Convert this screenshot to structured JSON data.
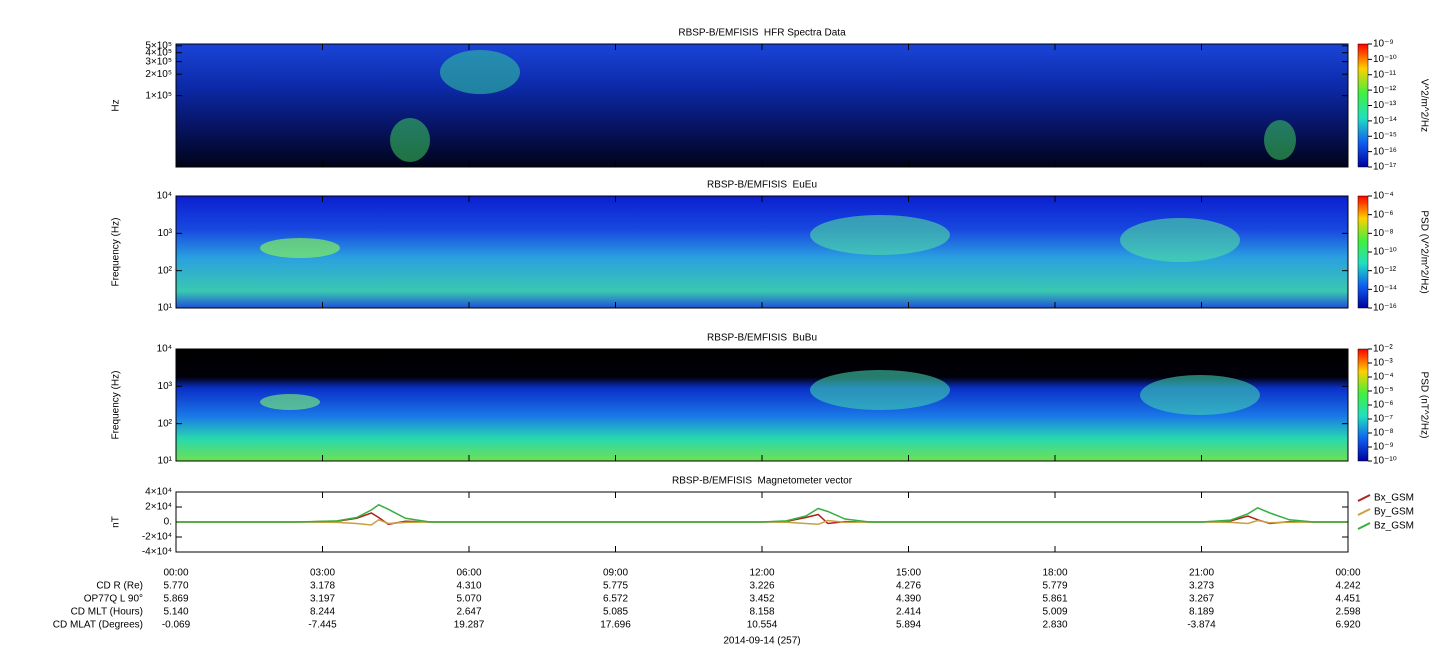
{
  "chart_data": [
    {
      "type": "spectrogram",
      "title": "RBSP-B/EMFISIS  HFR Spectra Data",
      "y_label": "Hz",
      "log_y": true,
      "ylim": [
        10000,
        530000
      ],
      "yticks": [
        {
          "value": 500000,
          "label": "5×10⁵"
        },
        {
          "value": 400000,
          "label": "4×10⁵"
        },
        {
          "value": 300000,
          "label": "3×10⁵"
        },
        {
          "value": 200000,
          "label": "2×10⁵"
        },
        {
          "value": 100000,
          "label": "1×10⁵"
        }
      ],
      "colorbar": {
        "label": "V^2/m^2/Hz",
        "zlim": [
          1e-17,
          1e-09
        ],
        "ticks": [
          {
            "value": 1e-09,
            "label": "10⁻⁹"
          },
          {
            "value": 1e-10,
            "label": "10⁻¹⁰"
          },
          {
            "value": 1e-11,
            "label": "10⁻¹¹"
          },
          {
            "value": 1e-12,
            "label": "10⁻¹²"
          },
          {
            "value": 1e-13,
            "label": "10⁻¹³"
          },
          {
            "value": 1e-14,
            "label": "10⁻¹⁴"
          },
          {
            "value": 1e-15,
            "label": "10⁻¹⁵"
          },
          {
            "value": 1e-16,
            "label": "10⁻¹⁶"
          },
          {
            "value": 1e-17,
            "label": "10⁻¹⁷"
          }
        ]
      }
    },
    {
      "type": "spectrogram",
      "title": "RBSP-B/EMFISIS  EuEu",
      "y_label": "Frequency (Hz)",
      "log_y": true,
      "ylim": [
        10,
        10000
      ],
      "yticks": [
        {
          "value": 10000,
          "label": "10⁴"
        },
        {
          "value": 1000,
          "label": "10³"
        },
        {
          "value": 100,
          "label": "10²"
        },
        {
          "value": 10,
          "label": "10¹"
        }
      ],
      "colorbar": {
        "label": "PSD (V^2/m^2/Hz)",
        "zlim": [
          1e-16,
          0.0001
        ],
        "ticks": [
          {
            "value": 0.0001,
            "label": "10⁻⁴"
          },
          {
            "value": 1e-06,
            "label": "10⁻⁶"
          },
          {
            "value": 1e-08,
            "label": "10⁻⁸"
          },
          {
            "value": 1e-10,
            "label": "10⁻¹⁰"
          },
          {
            "value": 1e-12,
            "label": "10⁻¹²"
          },
          {
            "value": 1e-14,
            "label": "10⁻¹⁴"
          },
          {
            "value": 1e-16,
            "label": "10⁻¹⁶"
          }
        ]
      }
    },
    {
      "type": "spectrogram",
      "title": "RBSP-B/EMFISIS  BuBu",
      "y_label": "Frequency (Hz)",
      "log_y": true,
      "ylim": [
        10,
        10000
      ],
      "yticks": [
        {
          "value": 10000,
          "label": "10⁴"
        },
        {
          "value": 1000,
          "label": "10³"
        },
        {
          "value": 100,
          "label": "10²"
        },
        {
          "value": 10,
          "label": "10¹"
        }
      ],
      "colorbar": {
        "label": "PSD (nT^2/Hz)",
        "zlim": [
          1e-10,
          0.01
        ],
        "ticks": [
          {
            "value": 0.01,
            "label": "10⁻²"
          },
          {
            "value": 0.001,
            "label": "10⁻³"
          },
          {
            "value": 0.0001,
            "label": "10⁻⁴"
          },
          {
            "value": 1e-05,
            "label": "10⁻⁵"
          },
          {
            "value": 1e-06,
            "label": "10⁻⁶"
          },
          {
            "value": 1e-07,
            "label": "10⁻⁷"
          },
          {
            "value": 1e-08,
            "label": "10⁻⁸"
          },
          {
            "value": 1e-09,
            "label": "10⁻⁹"
          },
          {
            "value": 1e-10,
            "label": "10⁻¹⁰"
          }
        ]
      }
    },
    {
      "type": "line",
      "title": "RBSP-B/EMFISIS  Magnetometer vector",
      "y_label": "nT",
      "log_y": false,
      "ylim": [
        -40000,
        40000
      ],
      "yticks": [
        {
          "value": 40000,
          "label": "4×10⁴"
        },
        {
          "value": 20000,
          "label": "2×10⁴"
        },
        {
          "value": 0,
          "label": "0."
        },
        {
          "value": -20000,
          "label": "-2×10⁴"
        },
        {
          "value": -40000,
          "label": "-4×10⁴"
        }
      ],
      "legend": "right",
      "x": [
        0,
        2.5,
        3.3,
        3.7,
        4.0,
        4.15,
        4.35,
        4.7,
        5.2,
        12,
        12.5,
        12.9,
        13.15,
        13.35,
        13.7,
        14.2,
        21,
        21.6,
        21.95,
        22.15,
        22.4,
        22.8,
        23.3,
        24
      ],
      "series": [
        {
          "name": "Bx_GSM",
          "color": "#b0201c",
          "values": [
            0,
            0,
            1000,
            5000,
            12000,
            6000,
            -3000,
            1000,
            0,
            0,
            800,
            6000,
            10000,
            -2000,
            500,
            0,
            0,
            1500,
            8000,
            3000,
            -2000,
            500,
            0,
            0
          ]
        },
        {
          "name": "By_GSM",
          "color": "#c8a040",
          "values": [
            0,
            0,
            -500,
            -2000,
            -4000,
            3000,
            -2000,
            -500,
            0,
            0,
            -300,
            -2000,
            -3000,
            2000,
            -500,
            0,
            0,
            -500,
            -2000,
            2000,
            -1000,
            -300,
            0,
            0
          ]
        },
        {
          "name": "Bz_GSM",
          "color": "#33b040",
          "values": [
            0,
            0,
            1500,
            6000,
            16000,
            23000,
            17000,
            5000,
            0,
            0,
            1500,
            8000,
            18000,
            14000,
            4000,
            0,
            0,
            2500,
            11000,
            19000,
            12000,
            3000,
            0,
            0
          ]
        }
      ]
    }
  ],
  "time_axis": {
    "xlim": [
      0,
      24
    ],
    "xticks": [
      {
        "value": 0,
        "label": "00:00"
      },
      {
        "value": 3,
        "label": "03:00"
      },
      {
        "value": 6,
        "label": "06:00"
      },
      {
        "value": 9,
        "label": "09:00"
      },
      {
        "value": 12,
        "label": "12:00"
      },
      {
        "value": 15,
        "label": "15:00"
      },
      {
        "value": 18,
        "label": "18:00"
      },
      {
        "value": 21,
        "label": "21:00"
      },
      {
        "value": 24,
        "label": "00:00"
      }
    ],
    "rows": [
      {
        "label": "CD R (Re)",
        "values": [
          "5.770",
          "3.178",
          "4.310",
          "5.775",
          "3.226",
          "4.276",
          "5.779",
          "3.273",
          "4.242"
        ]
      },
      {
        "label": "OP77Q L 90°",
        "values": [
          "5.869",
          "3.197",
          "5.070",
          "6.572",
          "3.452",
          "4.390",
          "5.861",
          "3.267",
          "4.451"
        ]
      },
      {
        "label": "CD MLT (Hours)",
        "values": [
          "5.140",
          "8.244",
          "2.647",
          "5.085",
          "8.158",
          "2.414",
          "5.009",
          "8.189",
          "2.598"
        ]
      },
      {
        "label": "CD MLAT (Degrees)",
        "values": [
          "-0.069",
          "-7.445",
          "19.287",
          "17.696",
          "10.554",
          "5.894",
          "2.830",
          "-3.874",
          "6.920"
        ]
      }
    ],
    "date": "2014-09-14 (257)"
  }
}
